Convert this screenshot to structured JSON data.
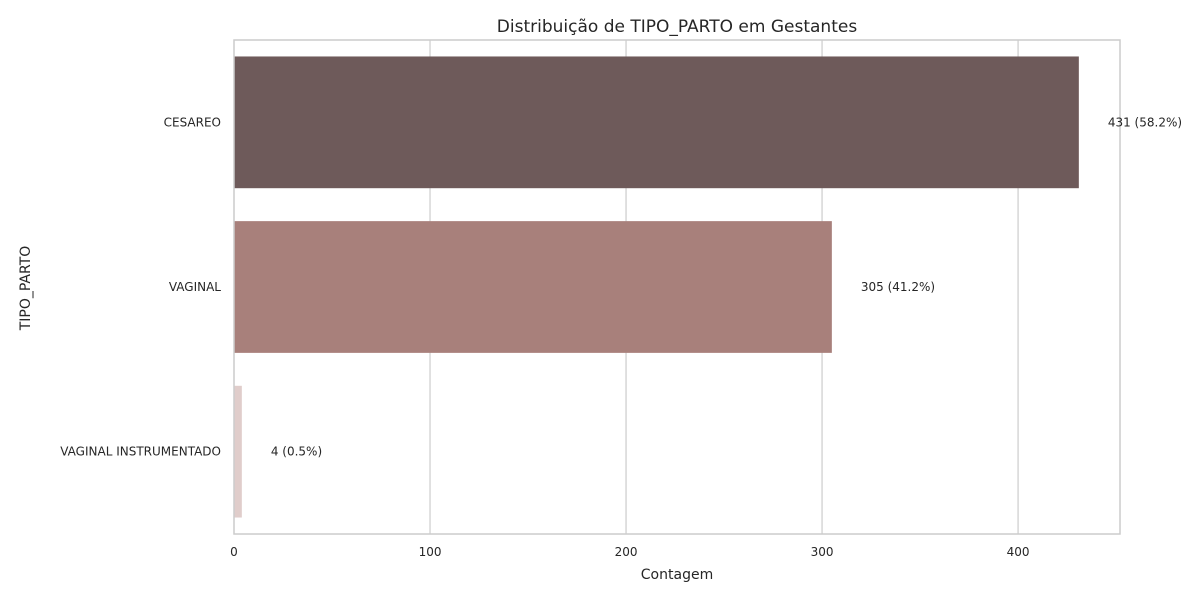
{
  "chart_data": {
    "type": "bar",
    "orientation": "horizontal",
    "title": "Distribuição de TIPO_PARTO em Gestantes",
    "xlabel": "Contagem",
    "ylabel": "TIPO_PARTO",
    "categories": [
      "CESAREO",
      "VAGINAL",
      "VAGINAL INSTRUMENTADO"
    ],
    "values": [
      431,
      305,
      4
    ],
    "data_labels": [
      "431 (58.2%)",
      "305 (41.2%)",
      "4 (0.5%)"
    ],
    "colors": [
      "#6e5a5a",
      "#a8807b",
      "#e0cdcb"
    ],
    "xlim": [
      0,
      452
    ],
    "xticks": [
      0,
      100,
      200,
      300,
      400
    ],
    "xtick_labels": [
      "0",
      "100",
      "200",
      "300",
      "400"
    ],
    "grid": true
  }
}
